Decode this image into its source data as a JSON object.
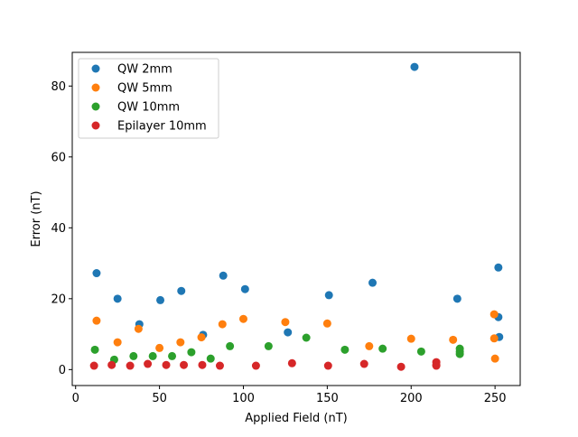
{
  "chart_data": {
    "type": "scatter",
    "title": "",
    "xlabel": "Applied Field (nT)",
    "ylabel": "Error (nT)",
    "xlim": [
      -2,
      265
    ],
    "ylim": [
      -4.5,
      89.5
    ],
    "xticks": [
      0,
      50,
      100,
      150,
      200,
      250
    ],
    "yticks": [
      0,
      20,
      40,
      60,
      80
    ],
    "grid": false,
    "legend_position": "top-left",
    "series": [
      {
        "name": "QW 2mm",
        "color": "#1f77b4",
        "points": [
          [
            12.5,
            27.2
          ],
          [
            25,
            20
          ],
          [
            38,
            12.8
          ],
          [
            50.5,
            19.6
          ],
          [
            63,
            22.2
          ],
          [
            76,
            9.8
          ],
          [
            88,
            26.5
          ],
          [
            101,
            22.7
          ],
          [
            126.5,
            10.5
          ],
          [
            151,
            21
          ],
          [
            177,
            24.5
          ],
          [
            202,
            85.4
          ],
          [
            227.5,
            20
          ],
          [
            252,
            28.8
          ],
          [
            252,
            14.8
          ],
          [
            252.5,
            9.2
          ]
        ]
      },
      {
        "name": "QW 5mm",
        "color": "#ff7f0e",
        "points": [
          [
            12.5,
            13.8
          ],
          [
            25,
            7.7
          ],
          [
            37.5,
            11.5
          ],
          [
            50,
            6.1
          ],
          [
            62.5,
            7.7
          ],
          [
            75,
            9.1
          ],
          [
            87.5,
            12.8
          ],
          [
            100,
            14.3
          ],
          [
            125,
            13.4
          ],
          [
            150,
            13
          ],
          [
            175,
            6.6
          ],
          [
            200,
            8.7
          ],
          [
            225,
            8.4
          ],
          [
            249.5,
            15.6
          ],
          [
            249.5,
            8.8
          ],
          [
            250,
            3.1
          ]
        ]
      },
      {
        "name": "QW 10mm",
        "color": "#2ca02c",
        "points": [
          [
            11.5,
            5.6
          ],
          [
            23,
            2.8
          ],
          [
            34.5,
            3.8
          ],
          [
            46,
            3.8
          ],
          [
            57.5,
            3.8
          ],
          [
            69,
            4.9
          ],
          [
            80.5,
            3.1
          ],
          [
            92,
            6.6
          ],
          [
            115,
            6.6
          ],
          [
            137.5,
            9
          ],
          [
            160.5,
            5.6
          ],
          [
            183,
            5.9
          ],
          [
            206,
            5.1
          ],
          [
            229,
            5.9
          ],
          [
            229,
            5.1
          ],
          [
            229,
            4.4
          ]
        ]
      },
      {
        "name": "Epilayer 10mm",
        "color": "#d62728",
        "points": [
          [
            11,
            1.1
          ],
          [
            21.5,
            1.3
          ],
          [
            32.5,
            1.1
          ],
          [
            43,
            1.6
          ],
          [
            54,
            1.3
          ],
          [
            64.5,
            1.3
          ],
          [
            75.5,
            1.3
          ],
          [
            86,
            1.1
          ],
          [
            107.5,
            1.1
          ],
          [
            129,
            1.8
          ],
          [
            150.5,
            1.1
          ],
          [
            172,
            1.6
          ],
          [
            194,
            0.8
          ],
          [
            215,
            1.1
          ],
          [
            215,
            2.1
          ],
          [
            215,
            1.3
          ]
        ]
      }
    ]
  }
}
